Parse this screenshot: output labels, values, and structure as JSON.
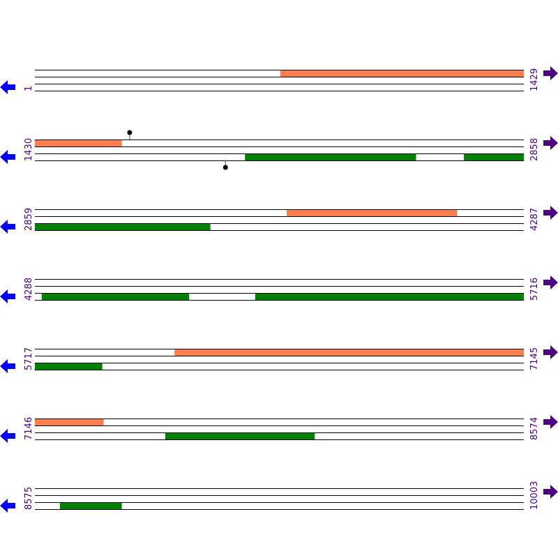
{
  "colors": {
    "forward_feature": "#ff7f50",
    "reverse_feature": "#008000",
    "label": "#4b0082",
    "left_arrow": "#0000ff",
    "right_arrow": "#4b0082",
    "marker_stem": "#ff0000",
    "marker_head": "#000000",
    "line": "#000000"
  },
  "rows": [
    {
      "start": "1",
      "end": "1429",
      "from": 1,
      "to": 1429,
      "forward": [
        [
          718,
          1429
        ]
      ],
      "reverse": [],
      "markers": []
    },
    {
      "start": "1430",
      "end": "2858",
      "from": 1430,
      "to": 2858,
      "forward": [
        [
          1430,
          1683
        ]
      ],
      "reverse": [
        [
          2044,
          2543
        ],
        [
          2684,
          2858
        ]
      ],
      "markers": [
        {
          "pos": 1707,
          "strand": "top"
        },
        {
          "pos": 1987,
          "strand": "bottom"
        }
      ]
    },
    {
      "start": "2859",
      "end": "4287",
      "from": 2859,
      "to": 4287,
      "forward": [
        [
          3595,
          4092
        ]
      ],
      "reverse": [
        [
          2859,
          3371
        ]
      ],
      "markers": []
    },
    {
      "start": "4288",
      "end": "5716",
      "from": 4288,
      "to": 5716,
      "forward": [],
      "reverse": [
        [
          4308,
          4738
        ],
        [
          4932,
          5716
        ]
      ],
      "markers": []
    },
    {
      "start": "5717",
      "end": "7145",
      "from": 5717,
      "to": 7145,
      "forward": [
        [
          6125,
          7145
        ]
      ],
      "reverse": [
        [
          5717,
          5913
        ]
      ],
      "markers": []
    },
    {
      "start": "7146",
      "end": "8574",
      "from": 7146,
      "to": 8574,
      "forward": [
        [
          7146,
          7346
        ]
      ],
      "reverse": [
        [
          7527,
          7963
        ]
      ],
      "markers": []
    },
    {
      "start": "8575",
      "end": "10003",
      "from": 8575,
      "to": 10003,
      "forward": [],
      "reverse": [
        [
          8648,
          8828
        ]
      ],
      "markers": []
    }
  ]
}
